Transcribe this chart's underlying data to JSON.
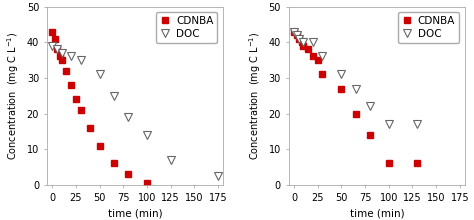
{
  "left": {
    "cdnba_x": [
      0,
      3,
      5,
      8,
      10,
      15,
      20,
      25,
      30,
      40,
      50,
      65,
      80,
      100
    ],
    "cdnba_y": [
      43,
      41,
      38,
      36,
      35,
      32,
      28,
      24,
      21,
      16,
      11,
      6,
      3,
      0.5
    ],
    "doc_x": [
      0,
      5,
      10,
      20,
      30,
      50,
      65,
      80,
      100,
      125,
      175
    ],
    "doc_y": [
      39,
      38,
      37,
      36,
      35,
      31,
      25,
      19,
      14,
      7,
      2.5
    ],
    "xlim": [
      -5,
      180
    ],
    "ylim": [
      0,
      50
    ],
    "xticks": [
      0,
      25,
      50,
      75,
      100,
      125,
      150,
      175
    ],
    "yticks": [
      0,
      10,
      20,
      30,
      40,
      50
    ]
  },
  "right": {
    "cdnba_x": [
      0,
      3,
      5,
      8,
      10,
      15,
      20,
      25,
      30,
      50,
      65,
      80,
      100,
      130
    ],
    "cdnba_y": [
      43,
      42,
      41,
      40,
      39,
      38,
      36,
      35,
      31,
      27,
      20,
      14,
      6,
      6
    ],
    "doc_x": [
      0,
      3,
      5,
      10,
      20,
      30,
      50,
      65,
      80,
      100,
      130
    ],
    "doc_y": [
      43,
      42,
      41,
      40,
      40,
      36,
      31,
      27,
      22,
      17,
      17
    ],
    "xlim": [
      -5,
      180
    ],
    "ylim": [
      0,
      50
    ],
    "xticks": [
      0,
      25,
      50,
      75,
      100,
      125,
      150,
      175
    ],
    "yticks": [
      0,
      10,
      20,
      30,
      40,
      50
    ]
  },
  "cdnba_color": "#cc0000",
  "cdnba_marker": "s",
  "cdnba_markersize": 4,
  "doc_color": "#ffffff",
  "doc_edgecolor": "#666666",
  "doc_marker": "v",
  "doc_markersize": 6,
  "xlabel": "time (min)",
  "legend_cdnba": "CDNBA",
  "legend_doc": "DOC",
  "background_color": "#ffffff",
  "spine_color": "#aaaaaa",
  "fontsize": 7,
  "label_fontsize": 7.5
}
